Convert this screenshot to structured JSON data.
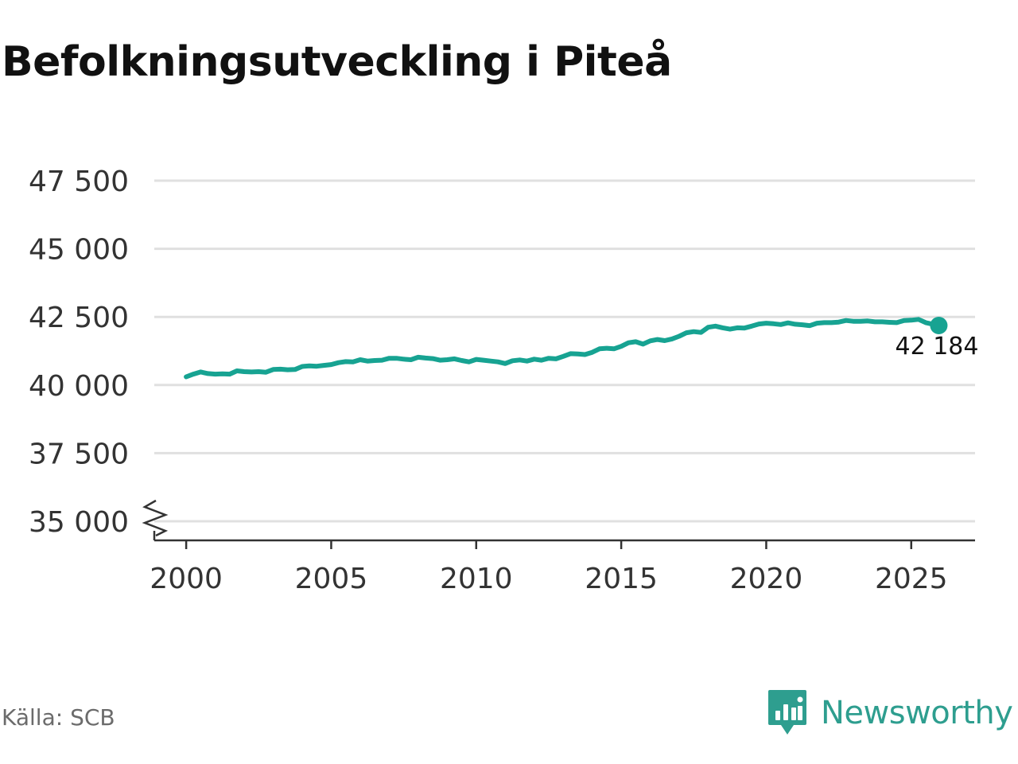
{
  "header": {
    "title": "Befolkningsutveckling i Piteå"
  },
  "footer": {
    "source": "Källa: SCB",
    "brand": "Newsworthy"
  },
  "colors": {
    "line": "#17a392",
    "grid": "#e0e0e0",
    "axis": "#333333",
    "brand": "#2e9e8f"
  },
  "icons": {
    "brand_logo": "newsworthy-logo-icon"
  },
  "chart_data": {
    "type": "line",
    "title": "Befolkningsutveckling i Piteå",
    "xlabel": "",
    "ylabel": "",
    "xlim": [
      1998.9,
      2027.2
    ],
    "ylim": [
      35000,
      47500
    ],
    "x_ticks": [
      2000,
      2005,
      2010,
      2015,
      2020,
      2025
    ],
    "x_tick_labels": [
      "2000",
      "2005",
      "2010",
      "2015",
      "2020",
      "2025"
    ],
    "y_ticks": [
      35000,
      37500,
      40000,
      42500,
      45000,
      47500
    ],
    "y_tick_labels": [
      "35 000",
      "37 500",
      "40 000",
      "42 500",
      "45 000",
      "47 500"
    ],
    "y_axis_break": true,
    "grid": true,
    "legend": "none",
    "end_label": "42 184",
    "series": [
      {
        "points": [
          [
            2000.0,
            40300
          ],
          [
            2000.25,
            40400
          ],
          [
            2000.5,
            40480
          ],
          [
            2000.75,
            40420
          ],
          [
            2001.0,
            40400
          ],
          [
            2001.25,
            40410
          ],
          [
            2001.5,
            40400
          ],
          [
            2001.75,
            40520
          ],
          [
            2002.0,
            40490
          ],
          [
            2002.25,
            40480
          ],
          [
            2002.5,
            40490
          ],
          [
            2002.75,
            40470
          ],
          [
            2003.0,
            40570
          ],
          [
            2003.25,
            40580
          ],
          [
            2003.5,
            40560
          ],
          [
            2003.75,
            40570
          ],
          [
            2004.0,
            40680
          ],
          [
            2004.25,
            40700
          ],
          [
            2004.5,
            40690
          ],
          [
            2004.75,
            40720
          ],
          [
            2005.0,
            40750
          ],
          [
            2005.25,
            40820
          ],
          [
            2005.5,
            40860
          ],
          [
            2005.75,
            40850
          ],
          [
            2006.0,
            40930
          ],
          [
            2006.25,
            40880
          ],
          [
            2006.5,
            40900
          ],
          [
            2006.75,
            40910
          ],
          [
            2007.0,
            40980
          ],
          [
            2007.25,
            40980
          ],
          [
            2007.5,
            40950
          ],
          [
            2007.75,
            40930
          ],
          [
            2008.0,
            41020
          ],
          [
            2008.25,
            40990
          ],
          [
            2008.5,
            40970
          ],
          [
            2008.75,
            40910
          ],
          [
            2009.0,
            40930
          ],
          [
            2009.25,
            40960
          ],
          [
            2009.5,
            40900
          ],
          [
            2009.75,
            40850
          ],
          [
            2010.0,
            40940
          ],
          [
            2010.25,
            40910
          ],
          [
            2010.5,
            40880
          ],
          [
            2010.75,
            40850
          ],
          [
            2011.0,
            40790
          ],
          [
            2011.25,
            40890
          ],
          [
            2011.5,
            40920
          ],
          [
            2011.75,
            40880
          ],
          [
            2012.0,
            40950
          ],
          [
            2012.25,
            40910
          ],
          [
            2012.5,
            40980
          ],
          [
            2012.75,
            40960
          ],
          [
            2013.0,
            41050
          ],
          [
            2013.25,
            41150
          ],
          [
            2013.5,
            41140
          ],
          [
            2013.75,
            41120
          ],
          [
            2014.0,
            41200
          ],
          [
            2014.25,
            41330
          ],
          [
            2014.5,
            41350
          ],
          [
            2014.75,
            41330
          ],
          [
            2015.0,
            41420
          ],
          [
            2015.25,
            41550
          ],
          [
            2015.5,
            41590
          ],
          [
            2015.75,
            41500
          ],
          [
            2016.0,
            41620
          ],
          [
            2016.25,
            41670
          ],
          [
            2016.5,
            41630
          ],
          [
            2016.75,
            41690
          ],
          [
            2017.0,
            41790
          ],
          [
            2017.25,
            41920
          ],
          [
            2017.5,
            41960
          ],
          [
            2017.75,
            41930
          ],
          [
            2018.0,
            42120
          ],
          [
            2018.25,
            42160
          ],
          [
            2018.5,
            42100
          ],
          [
            2018.75,
            42050
          ],
          [
            2019.0,
            42100
          ],
          [
            2019.25,
            42090
          ],
          [
            2019.5,
            42160
          ],
          [
            2019.75,
            42240
          ],
          [
            2020.0,
            42270
          ],
          [
            2020.25,
            42250
          ],
          [
            2020.5,
            42220
          ],
          [
            2020.75,
            42280
          ],
          [
            2021.0,
            42230
          ],
          [
            2021.25,
            42210
          ],
          [
            2021.5,
            42180
          ],
          [
            2021.75,
            42270
          ],
          [
            2022.0,
            42290
          ],
          [
            2022.25,
            42290
          ],
          [
            2022.5,
            42310
          ],
          [
            2022.75,
            42370
          ],
          [
            2023.0,
            42340
          ],
          [
            2023.25,
            42340
          ],
          [
            2023.5,
            42350
          ],
          [
            2023.75,
            42320
          ],
          [
            2024.0,
            42320
          ],
          [
            2024.25,
            42300
          ],
          [
            2024.5,
            42290
          ],
          [
            2024.75,
            42370
          ],
          [
            2025.0,
            42380
          ],
          [
            2025.25,
            42410
          ],
          [
            2025.5,
            42290
          ],
          [
            2025.75,
            42230
          ],
          [
            2025.95,
            42184
          ]
        ]
      }
    ]
  }
}
